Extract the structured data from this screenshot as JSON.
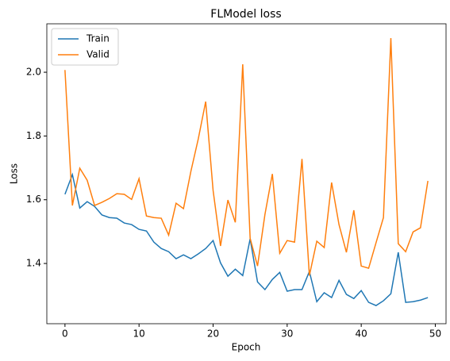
{
  "chart_data": {
    "type": "line",
    "title": "FLModel loss",
    "x_label": "Epoch",
    "y_label": "Loss",
    "x": [
      0,
      1,
      2,
      3,
      4,
      5,
      6,
      7,
      8,
      9,
      10,
      11,
      12,
      13,
      14,
      15,
      16,
      17,
      18,
      19,
      20,
      21,
      22,
      23,
      24,
      25,
      26,
      27,
      28,
      29,
      30,
      31,
      32,
      33,
      34,
      35,
      36,
      37,
      38,
      39,
      40,
      41,
      42,
      43,
      44,
      45,
      46,
      47,
      48,
      49
    ],
    "series": [
      {
        "name": "Train",
        "color": "#1f77b4",
        "values": [
          1.617,
          1.679,
          1.574,
          1.594,
          1.579,
          1.552,
          1.544,
          1.542,
          1.527,
          1.522,
          1.507,
          1.502,
          1.467,
          1.447,
          1.437,
          1.415,
          1.427,
          1.415,
          1.43,
          1.447,
          1.472,
          1.402,
          1.36,
          1.382,
          1.362,
          1.477,
          1.342,
          1.318,
          1.35,
          1.372,
          1.313,
          1.318,
          1.318,
          1.375,
          1.28,
          1.308,
          1.293,
          1.347,
          1.303,
          1.29,
          1.315,
          1.278,
          1.268,
          1.283,
          1.305,
          1.435,
          1.278,
          1.28,
          1.285,
          1.293
        ]
      },
      {
        "name": "Valid",
        "color": "#ff7f0e",
        "values": [
          2.007,
          1.582,
          1.699,
          1.661,
          1.582,
          1.592,
          1.604,
          1.619,
          1.617,
          1.601,
          1.666,
          1.549,
          1.544,
          1.542,
          1.489,
          1.589,
          1.572,
          1.689,
          1.791,
          1.908,
          1.629,
          1.455,
          1.599,
          1.529,
          2.025,
          1.479,
          1.392,
          1.554,
          1.681,
          1.432,
          1.472,
          1.467,
          1.728,
          1.362,
          1.47,
          1.45,
          1.654,
          1.522,
          1.435,
          1.567,
          1.392,
          1.385,
          1.465,
          1.544,
          2.107,
          1.462,
          1.437,
          1.499,
          1.512,
          1.659
        ]
      }
    ],
    "xlim": [
      -2.45,
      51.45
    ],
    "ylim": [
      1.211,
      2.152
    ],
    "xticks": [
      0,
      10,
      20,
      30,
      40,
      50
    ],
    "yticks": [
      1.4,
      1.6,
      1.8,
      {
        "value": 2.0,
        "label": "2.0"
      }
    ],
    "grid": false,
    "legend": "upper left"
  }
}
